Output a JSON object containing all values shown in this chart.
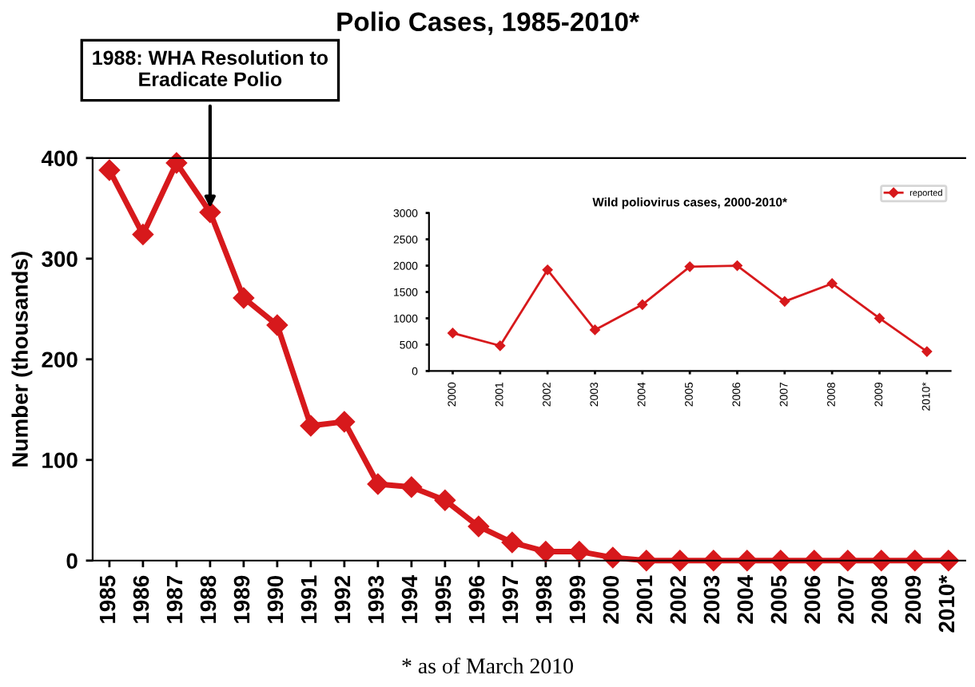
{
  "chart_data": [
    {
      "type": "line",
      "title": "Polio Cases, 1985-2010*",
      "ylabel": "Number (thousands)",
      "categories": [
        "1985",
        "1986",
        "1987",
        "1988",
        "1989",
        "1990",
        "1991",
        "1992",
        "1993",
        "1994",
        "1995",
        "1996",
        "1997",
        "1998",
        "1999",
        "2000",
        "2001",
        "2002",
        "2003",
        "2004",
        "2005",
        "2006",
        "2007",
        "2008",
        "2009",
        "2010*"
      ],
      "series": [
        {
          "color": "#d7191c",
          "values": [
            388,
            324,
            395,
            346,
            261,
            234,
            134,
            138,
            76,
            73,
            60,
            34,
            18,
            9,
            9,
            3,
            0,
            0,
            0,
            0,
            0,
            0,
            0,
            0,
            0,
            0
          ]
        }
      ],
      "ylim": [
        0,
        400
      ],
      "yticks": [
        0,
        100,
        200,
        300,
        400
      ],
      "marker": "diamond",
      "line_style": "solid",
      "grid": false,
      "legend": false,
      "annotations": [
        {
          "text": "1988: WHA Resolution to\nEradicate Polio",
          "x": "1988",
          "y": 346
        },
        "* as of March 2010"
      ]
    },
    {
      "type": "line",
      "title": "Wild poliovirus cases, 2000-2010*",
      "categories": [
        "2000",
        "2001",
        "2002",
        "2003",
        "2004",
        "2005",
        "2006",
        "2007",
        "2008",
        "2009",
        "2010*"
      ],
      "series": [
        {
          "name": "reported",
          "color": "#d7191c",
          "values": [
            720,
            480,
            1920,
            780,
            1260,
            1980,
            2000,
            1320,
            1660,
            1000,
            370
          ]
        }
      ],
      "ylim": [
        0,
        3000
      ],
      "yticks": [
        0,
        500,
        1000,
        1500,
        2000,
        2500,
        3000
      ],
      "marker": "diamond",
      "line_style": "solid",
      "grid": false,
      "legend": "top right"
    }
  ]
}
